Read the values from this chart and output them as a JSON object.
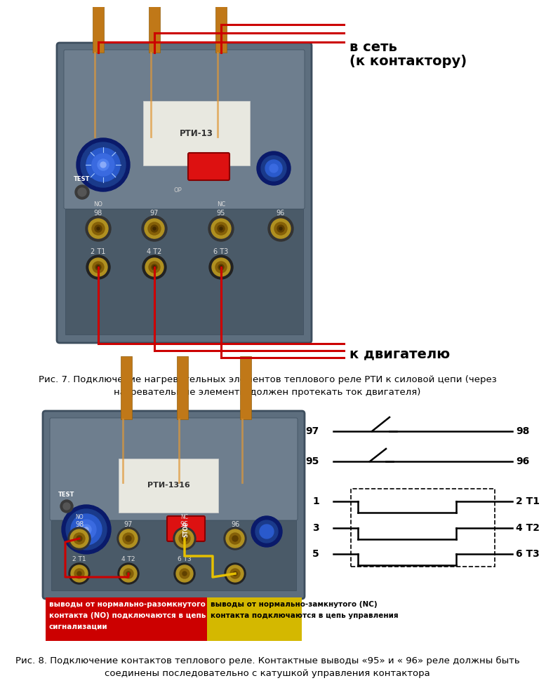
{
  "bg_color": "#ffffff",
  "v_set_label_line1": "в сеть",
  "v_set_label_line2": "(к контактору)",
  "k_dvig_label": "к двигателю",
  "fig7_caption_line1": "Рис. 7. Подключение нагревательных элементов теплового реле РТИ к силовой цепи (через",
  "fig7_caption_line2": "нагревательные элементы должен протекать ток двигателя)",
  "fig8_caption_line1": "Рис. 8. Подключение контактов теплового реле. Контактные выводы «95» и « 96» реле должны быть",
  "fig8_caption_line2": "соединены последовательно с катушкой управления контактора",
  "no_label_line1": "выводы от нормально-разомкнутого",
  "no_label_line2": "контакта (NO) подключаются в цепь",
  "no_label_line3": "сигнализации",
  "nc_label_line1": "выводы от нормально-замкнутого (NC)",
  "nc_label_line2": "контакта подключаются в цепь управления",
  "schematic_labels_left": [
    "97",
    "95",
    "1",
    "3",
    "5"
  ],
  "schematic_labels_right": [
    "98",
    "96",
    "2 T1",
    "4 T2",
    "6 T3"
  ],
  "red_color": "#cc0000",
  "yellow_color": "#e6c000",
  "relay_body": "#5d6e7e",
  "relay_dark": "#3d4e5e",
  "relay_mid": "#6e7e8e",
  "relay_light": "#8a9aaa",
  "screw_gold": "#b09020",
  "screw_dark": "#705010",
  "copper_color": "#c07818",
  "blue_dark": "#1a3a8a",
  "blue_mid": "#2a5acc",
  "no_bg": "#cc0000",
  "nc_bg": "#d4b800",
  "white_panel": "#e8e8e0",
  "relay1_label": "РТИ-13",
  "relay2_label": "РТИ-1316"
}
